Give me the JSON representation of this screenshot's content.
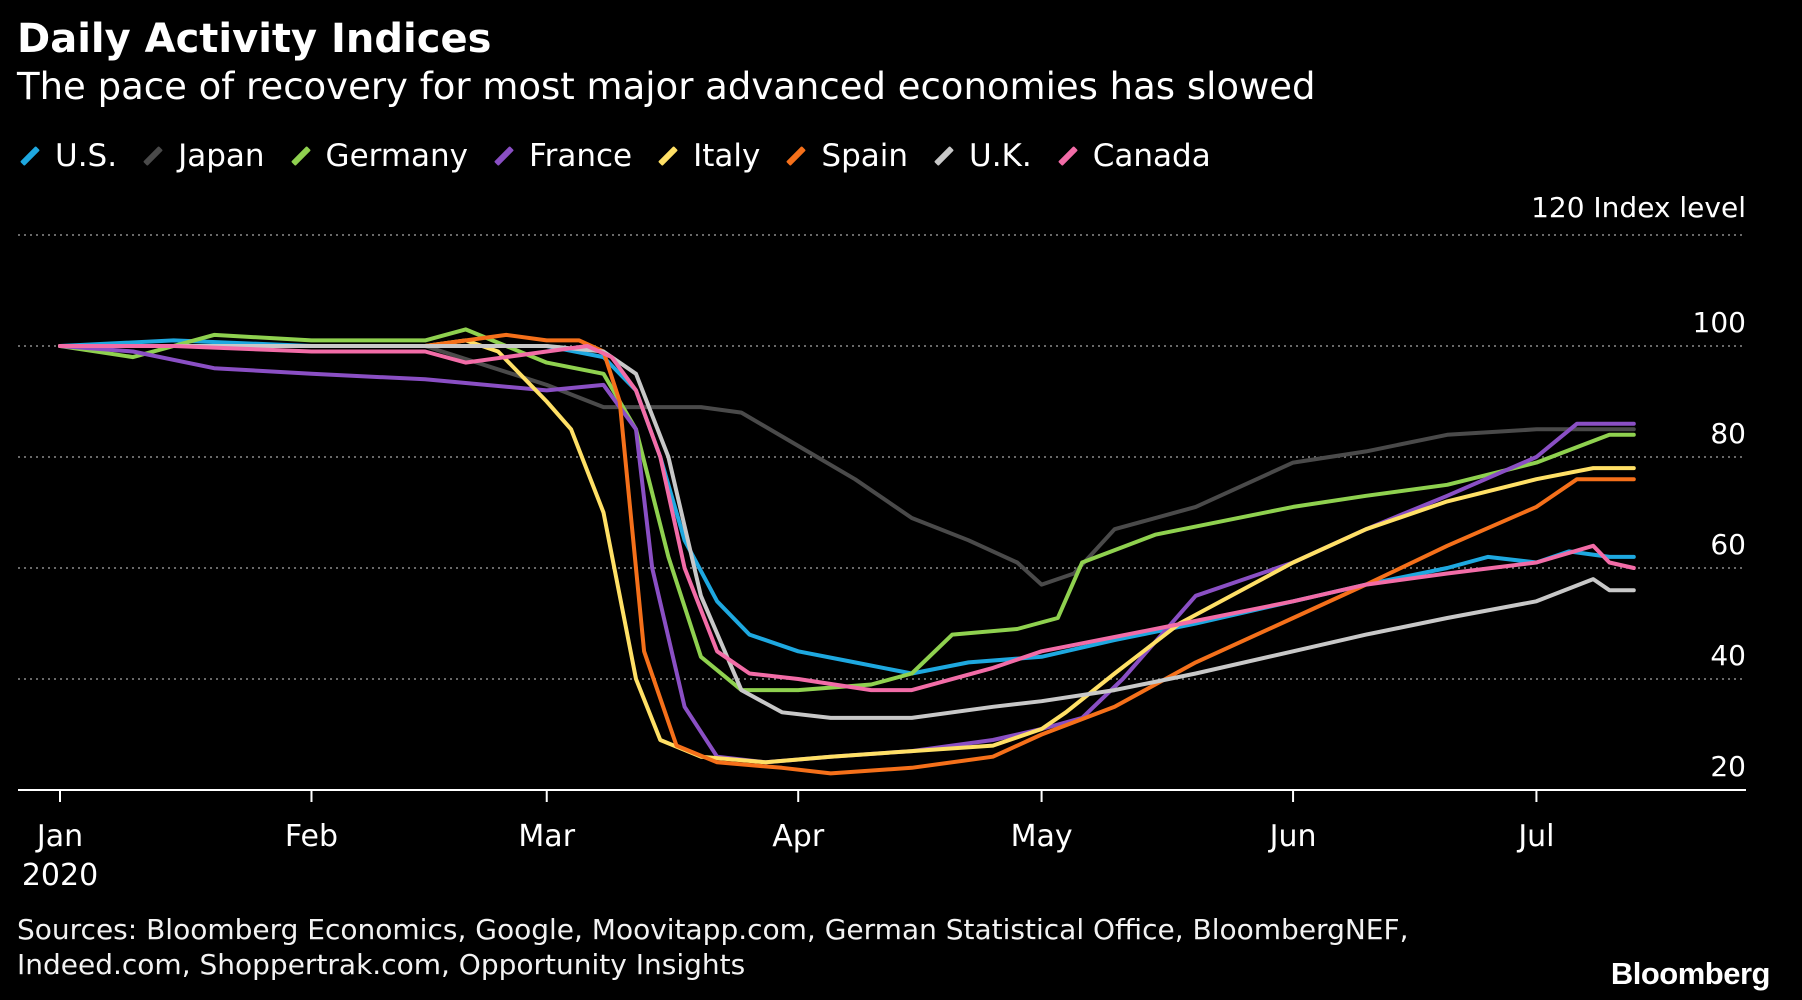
{
  "header": {
    "title": "Daily Activity Indices",
    "subtitle": "The pace of recovery for most major advanced economies has slowed"
  },
  "legend": [
    {
      "label": "U.S.",
      "color": "#1ea8e0"
    },
    {
      "label": "Japan",
      "color": "#4a4a4a"
    },
    {
      "label": "Germany",
      "color": "#8fd14f"
    },
    {
      "label": "France",
      "color": "#8a4fc4"
    },
    {
      "label": "Italy",
      "color": "#ffe066"
    },
    {
      "label": "Spain",
      "color": "#f5701a"
    },
    {
      "label": "U.K.",
      "color": "#c8c8c8"
    },
    {
      "label": "Canada",
      "color": "#f26ca7"
    }
  ],
  "footer": {
    "sources_line1": "Sources: Bloomberg Economics, Google, Moovitapp.com, German Statistical Office, BloombergNEF,",
    "sources_line2": "Indeed.com, Shoppertrak.com, Opportunity Insights",
    "brand": "Bloomberg"
  },
  "chart_data": {
    "type": "line",
    "title": "Daily Activity Indices",
    "subtitle": "The pace of recovery for most major advanced economies has slowed",
    "ylabel": "Index level",
    "ylim": [
      20,
      120
    ],
    "yticks": [
      20,
      40,
      60,
      80,
      100,
      120
    ],
    "y_top_label": "120 Index level",
    "xlim": [
      "2020-01-01",
      "2020-07-15"
    ],
    "xticks": [
      {
        "date": "2020-01-01",
        "label": "Jan",
        "sublabel": "2020"
      },
      {
        "date": "2020-02-01",
        "label": "Feb"
      },
      {
        "date": "2020-03-01",
        "label": "Mar"
      },
      {
        "date": "2020-04-01",
        "label": "Apr"
      },
      {
        "date": "2020-05-01",
        "label": "May"
      },
      {
        "date": "2020-06-01",
        "label": "Jun"
      },
      {
        "date": "2020-07-01",
        "label": "Jul"
      }
    ],
    "grid": true,
    "legend_position": "top",
    "series": [
      {
        "name": "U.S.",
        "color": "#1ea8e0",
        "x": [
          "2020-01-01",
          "2020-01-15",
          "2020-02-01",
          "2020-02-15",
          "2020-03-01",
          "2020-03-08",
          "2020-03-12",
          "2020-03-15",
          "2020-03-18",
          "2020-03-22",
          "2020-03-26",
          "2020-04-01",
          "2020-04-08",
          "2020-04-15",
          "2020-04-22",
          "2020-05-01",
          "2020-05-10",
          "2020-05-20",
          "2020-06-01",
          "2020-06-10",
          "2020-06-20",
          "2020-06-25",
          "2020-07-01",
          "2020-07-05",
          "2020-07-10",
          "2020-07-13"
        ],
        "y": [
          100,
          101,
          100,
          100,
          100,
          98,
          92,
          80,
          65,
          54,
          48,
          45,
          43,
          41,
          43,
          44,
          47,
          50,
          54,
          57,
          60,
          62,
          61,
          63,
          62,
          62
        ]
      },
      {
        "name": "Japan",
        "color": "#4a4a4a",
        "x": [
          "2020-01-01",
          "2020-01-15",
          "2020-02-01",
          "2020-02-15",
          "2020-03-01",
          "2020-03-08",
          "2020-03-15",
          "2020-03-20",
          "2020-03-25",
          "2020-04-01",
          "2020-04-08",
          "2020-04-15",
          "2020-04-22",
          "2020-04-28",
          "2020-05-01",
          "2020-05-05",
          "2020-05-10",
          "2020-05-20",
          "2020-06-01",
          "2020-06-10",
          "2020-06-20",
          "2020-07-01",
          "2020-07-10",
          "2020-07-13"
        ],
        "y": [
          100,
          100,
          100,
          100,
          93,
          89,
          89,
          89,
          88,
          82,
          76,
          69,
          65,
          61,
          57,
          59,
          67,
          71,
          79,
          81,
          84,
          85,
          85,
          85
        ]
      },
      {
        "name": "Germany",
        "color": "#8fd14f",
        "x": [
          "2020-01-01",
          "2020-01-10",
          "2020-01-20",
          "2020-02-01",
          "2020-02-15",
          "2020-02-20",
          "2020-03-01",
          "2020-03-08",
          "2020-03-12",
          "2020-03-16",
          "2020-03-20",
          "2020-03-25",
          "2020-04-01",
          "2020-04-10",
          "2020-04-15",
          "2020-04-20",
          "2020-04-28",
          "2020-05-03",
          "2020-05-06",
          "2020-05-15",
          "2020-06-01",
          "2020-06-10",
          "2020-06-20",
          "2020-07-01",
          "2020-07-10",
          "2020-07-13"
        ],
        "y": [
          100,
          98,
          102,
          101,
          101,
          103,
          97,
          95,
          85,
          62,
          44,
          38,
          38,
          39,
          41,
          48,
          49,
          51,
          61,
          66,
          71,
          73,
          75,
          79,
          84,
          84
        ]
      },
      {
        "name": "France",
        "color": "#8a4fc4",
        "x": [
          "2020-01-01",
          "2020-01-10",
          "2020-01-20",
          "2020-02-01",
          "2020-02-15",
          "2020-03-01",
          "2020-03-08",
          "2020-03-12",
          "2020-03-14",
          "2020-03-18",
          "2020-03-22",
          "2020-03-28",
          "2020-04-05",
          "2020-04-15",
          "2020-04-25",
          "2020-05-01",
          "2020-05-06",
          "2020-05-11",
          "2020-05-20",
          "2020-06-01",
          "2020-06-10",
          "2020-06-20",
          "2020-07-01",
          "2020-07-06",
          "2020-07-13"
        ],
        "y": [
          100,
          99,
          96,
          95,
          94,
          92,
          93,
          85,
          60,
          35,
          26,
          25,
          26,
          27,
          29,
          31,
          33,
          40,
          55,
          61,
          67,
          73,
          80,
          86,
          86
        ]
      },
      {
        "name": "Italy",
        "color": "#ffe066",
        "x": [
          "2020-01-01",
          "2020-01-15",
          "2020-02-01",
          "2020-02-15",
          "2020-02-20",
          "2020-02-24",
          "2020-03-01",
          "2020-03-04",
          "2020-03-08",
          "2020-03-12",
          "2020-03-15",
          "2020-03-20",
          "2020-03-28",
          "2020-04-05",
          "2020-04-15",
          "2020-04-25",
          "2020-05-01",
          "2020-05-04",
          "2020-05-10",
          "2020-05-18",
          "2020-06-01",
          "2020-06-10",
          "2020-06-20",
          "2020-07-01",
          "2020-07-08",
          "2020-07-13"
        ],
        "y": [
          100,
          100,
          100,
          100,
          101,
          99,
          90,
          85,
          70,
          40,
          29,
          26,
          25,
          26,
          27,
          28,
          31,
          34,
          41,
          50,
          61,
          67,
          72,
          76,
          78,
          78
        ]
      },
      {
        "name": "Spain",
        "color": "#f5701a",
        "x": [
          "2020-01-01",
          "2020-01-15",
          "2020-02-01",
          "2020-02-15",
          "2020-02-25",
          "2020-03-01",
          "2020-03-05",
          "2020-03-08",
          "2020-03-10",
          "2020-03-13",
          "2020-03-17",
          "2020-03-22",
          "2020-03-30",
          "2020-04-05",
          "2020-04-15",
          "2020-04-25",
          "2020-05-01",
          "2020-05-10",
          "2020-05-20",
          "2020-06-01",
          "2020-06-10",
          "2020-06-20",
          "2020-07-01",
          "2020-07-06",
          "2020-07-13"
        ],
        "y": [
          100,
          100,
          100,
          100,
          102,
          101,
          101,
          99,
          90,
          45,
          28,
          25,
          24,
          23,
          24,
          26,
          30,
          35,
          43,
          51,
          57,
          64,
          71,
          76,
          76
        ]
      },
      {
        "name": "U.K.",
        "color": "#c8c8c8",
        "x": [
          "2020-01-01",
          "2020-01-15",
          "2020-02-01",
          "2020-02-15",
          "2020-02-25",
          "2020-03-01",
          "2020-03-08",
          "2020-03-12",
          "2020-03-16",
          "2020-03-20",
          "2020-03-25",
          "2020-03-30",
          "2020-04-05",
          "2020-04-15",
          "2020-04-25",
          "2020-05-01",
          "2020-05-10",
          "2020-05-20",
          "2020-06-01",
          "2020-06-10",
          "2020-06-20",
          "2020-07-01",
          "2020-07-08",
          "2020-07-10",
          "2020-07-13"
        ],
        "y": [
          100,
          100,
          100,
          100,
          100,
          100,
          99,
          95,
          80,
          55,
          38,
          34,
          33,
          33,
          35,
          36,
          38,
          41,
          45,
          48,
          51,
          54,
          58,
          56,
          56
        ]
      },
      {
        "name": "Canada",
        "color": "#f26ca7",
        "x": [
          "2020-01-01",
          "2020-01-15",
          "2020-02-01",
          "2020-02-15",
          "2020-02-20",
          "2020-03-01",
          "2020-03-06",
          "2020-03-09",
          "2020-03-12",
          "2020-03-15",
          "2020-03-18",
          "2020-03-22",
          "2020-03-26",
          "2020-04-01",
          "2020-04-10",
          "2020-04-15",
          "2020-04-25",
          "2020-05-01",
          "2020-05-15",
          "2020-06-01",
          "2020-06-10",
          "2020-06-20",
          "2020-07-01",
          "2020-07-08",
          "2020-07-10",
          "2020-07-13"
        ],
        "y": [
          100,
          100,
          99,
          99,
          97,
          99,
          100,
          98,
          92,
          80,
          60,
          45,
          41,
          40,
          38,
          38,
          42,
          45,
          49,
          54,
          57,
          59,
          61,
          64,
          61,
          60
        ]
      }
    ]
  }
}
